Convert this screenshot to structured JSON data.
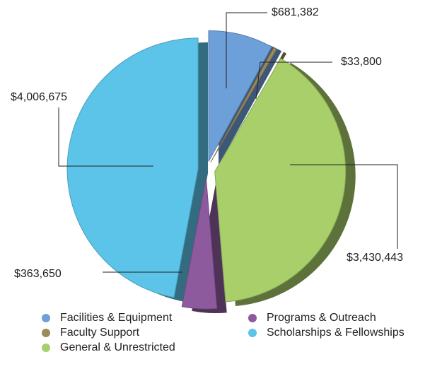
{
  "chart_data": {
    "type": "pie",
    "categories": [
      "Facilities & Equipment",
      "Faculty Support",
      "General & Unrestricted",
      "Programs & Outreach",
      "Scholarships & Fellowships"
    ],
    "values": [
      681382,
      33800,
      3430443,
      363650,
      4006675
    ],
    "value_labels": [
      "$681,382",
      "$33,800",
      "$3,430,443",
      "$363,650",
      "$4,006,675"
    ],
    "colors": [
      "#6d9fd9",
      "#9c8a5a",
      "#a8cf6a",
      "#8e5a9e",
      "#5cc4e8"
    ],
    "legend": "bottom"
  }
}
